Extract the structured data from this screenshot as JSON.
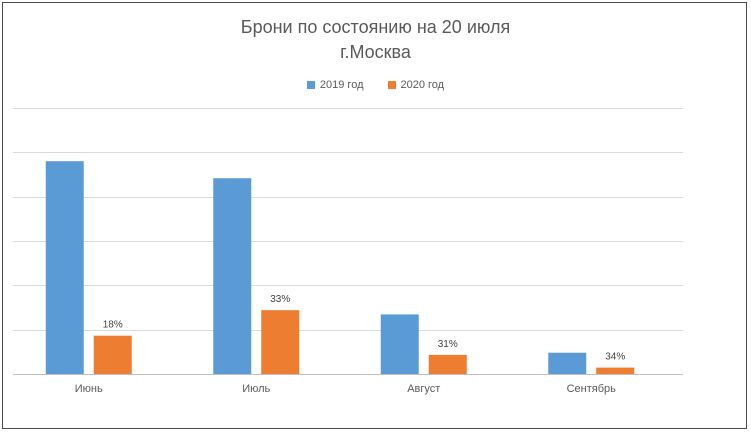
{
  "chart_data": {
    "type": "bar",
    "title": "Брони по состоянию на 20 июля",
    "subtitle": "г.Москва",
    "categories": [
      "Июнь",
      "Июль",
      "Август",
      "Сентябрь"
    ],
    "series": [
      {
        "name": "2019 год",
        "color": "#5b9bd5",
        "values": [
          100,
          92,
          28,
          10
        ]
      },
      {
        "name": "2020 год",
        "color": "#ed7d31",
        "values": [
          18,
          30,
          9,
          3
        ]
      }
    ],
    "data_labels": [
      "18%",
      "33%",
      "31%",
      "34%"
    ],
    "ylim": [
      0,
      125
    ],
    "grid": true,
    "legend": "top"
  }
}
